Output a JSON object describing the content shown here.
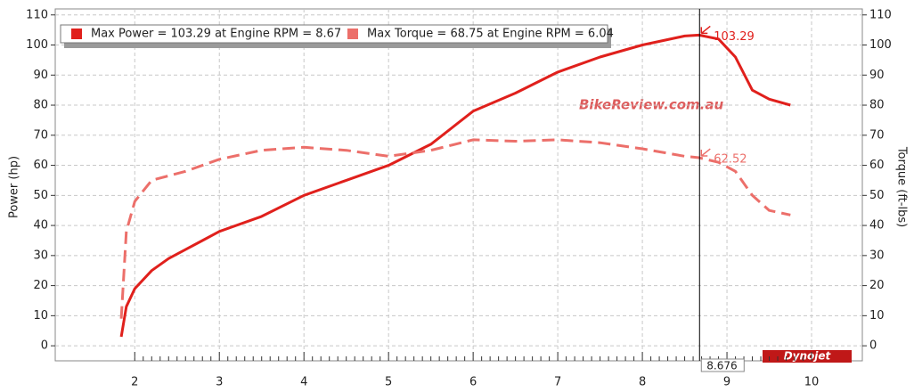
{
  "chart_data": {
    "type": "line",
    "y_label": "Power (hp)",
    "y2_label": "Torque (ft-lbs)",
    "xlim": [
      1.06,
      10.6
    ],
    "xticks": [
      2,
      3,
      4,
      5,
      6,
      7,
      8,
      9,
      10
    ],
    "ylim": [
      -5,
      112
    ],
    "yticks": [
      0,
      10,
      20,
      30,
      40,
      50,
      60,
      70,
      80,
      90,
      100,
      110
    ],
    "y2lim": [
      -5,
      112
    ],
    "y2ticks": [
      0,
      10,
      20,
      30,
      40,
      50,
      60,
      70,
      80,
      90,
      100,
      110
    ],
    "grid": true,
    "legend": [
      "Max Power = 103.29 at Engine RPM = 8.67",
      "Max Torque = 68.75 at Engine RPM = 6.04"
    ],
    "series": [
      {
        "name": "Power",
        "color": "#e0201c",
        "dash": false,
        "x": [
          1.84,
          1.9,
          2.0,
          2.2,
          2.4,
          2.6,
          2.8,
          3.0,
          3.5,
          4.0,
          4.5,
          5.0,
          5.5,
          6.0,
          6.5,
          7.0,
          7.5,
          8.0,
          8.5,
          8.67,
          8.9,
          9.1,
          9.3,
          9.5,
          9.75
        ],
        "values": [
          3,
          13,
          19,
          25,
          29,
          32,
          35,
          38,
          43,
          50,
          55,
          60,
          67,
          78,
          84,
          91,
          96,
          100,
          103,
          103.29,
          102,
          96,
          85,
          82,
          80
        ]
      },
      {
        "name": "Torque",
        "color": "#ec6f6a",
        "dash": true,
        "axis": "y2",
        "x": [
          1.84,
          1.9,
          2.0,
          2.2,
          2.6,
          3.0,
          3.5,
          4.0,
          4.5,
          5.0,
          5.5,
          6.0,
          6.5,
          7.0,
          7.5,
          8.0,
          8.5,
          8.67,
          8.9,
          9.1,
          9.3,
          9.5,
          9.75
        ],
        "values": [
          9,
          38,
          48,
          55,
          58,
          62,
          65,
          66,
          65,
          63,
          65,
          68.5,
          68,
          68.5,
          67.5,
          65.5,
          63,
          62.52,
          61,
          58,
          50,
          45,
          43.5
        ]
      }
    ],
    "cursor": {
      "x": 8.676,
      "power": 103.29,
      "torque": 62.52
    },
    "watermark": "BikeReview.com.au",
    "logo": "Dynojet"
  }
}
